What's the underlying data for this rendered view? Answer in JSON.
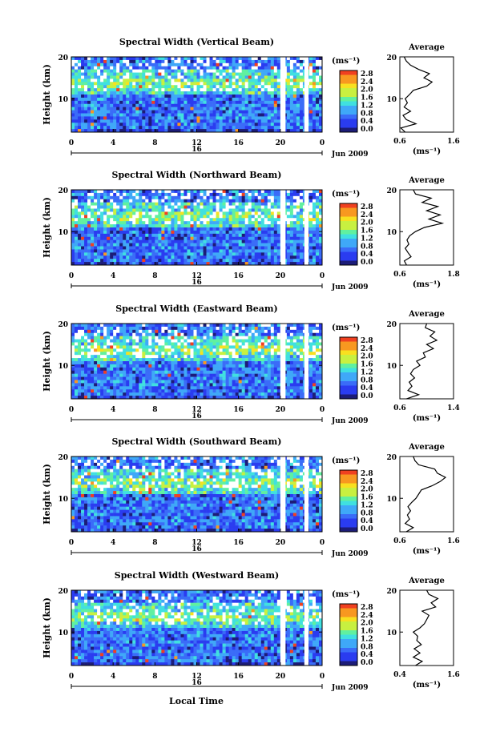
{
  "figure": {
    "xlabel": "Local Time",
    "colorbar_unit": "(ms⁻¹)",
    "colorbar_ticks": [
      "0.0",
      "0.4",
      "0.8",
      "1.2",
      "1.6",
      "2.0",
      "2.4",
      "2.8"
    ],
    "avg_title": "Average",
    "avg_xlabel": "(ms⁻¹)",
    "date_label": "Jun 2009",
    "day_label": "16",
    "ylabel": "Height (km)"
  },
  "chart_data": [
    {
      "type": "heatmap",
      "title": "Spectral Width (Vertical Beam)",
      "xlabel": "Local Time",
      "ylabel": "Height (km)",
      "x_ticks": [
        "0",
        "4",
        "8",
        "12",
        "16",
        "20",
        "0"
      ],
      "xlim": [
        0,
        24
      ],
      "y_ticks": [
        "10",
        "20"
      ],
      "ylim": [
        2,
        20
      ],
      "colorbar": {
        "label": "(ms⁻¹)",
        "range": [
          0.0,
          2.8
        ],
        "ticks": [
          "0.0",
          "0.4",
          "0.8",
          "1.2",
          "1.6",
          "2.0",
          "2.4",
          "2.8"
        ]
      },
      "data_gaps_hours": [
        [
          20.0,
          20.5
        ],
        [
          22.3,
          22.7
        ]
      ],
      "average_profile": {
        "title": "Average",
        "xlabel": "(ms⁻¹)",
        "x_ticks": [
          "0.6",
          "1.6"
        ],
        "xlim": [
          0.6,
          1.6
        ],
        "y_ticks": [
          "10",
          "20"
        ],
        "ylim": [
          2,
          20
        ],
        "height_km": [
          2,
          3,
          4,
          5,
          6,
          7,
          8,
          9,
          10,
          11,
          12,
          13,
          14,
          15,
          16,
          17,
          18,
          19,
          20
        ],
        "width_ms": [
          0.7,
          0.62,
          0.9,
          0.72,
          0.66,
          0.8,
          0.68,
          0.74,
          0.7,
          0.78,
          0.85,
          1.1,
          1.2,
          1.05,
          1.15,
          0.95,
          0.8,
          0.72,
          0.68
        ]
      }
    },
    {
      "type": "heatmap",
      "title": "Spectral Width (Northward Beam)",
      "xlabel": "Local Time",
      "ylabel": "Height (km)",
      "x_ticks": [
        "0",
        "4",
        "8",
        "12",
        "16",
        "20",
        "0"
      ],
      "xlim": [
        0,
        24
      ],
      "y_ticks": [
        "10",
        "20"
      ],
      "ylim": [
        2,
        20
      ],
      "colorbar": {
        "label": "(ms⁻¹)",
        "range": [
          0.0,
          2.8
        ],
        "ticks": [
          "0.0",
          "0.4",
          "0.8",
          "1.2",
          "1.6",
          "2.0",
          "2.4",
          "2.8"
        ]
      },
      "data_gaps_hours": [
        [
          20.0,
          20.5
        ],
        [
          22.3,
          22.7
        ]
      ],
      "average_profile": {
        "title": "Average",
        "xlabel": "(ms⁻¹)",
        "x_ticks": [
          "0.6",
          "1.8"
        ],
        "xlim": [
          0.6,
          1.8
        ],
        "y_ticks": [
          "10",
          "20"
        ],
        "ylim": [
          2,
          20
        ],
        "height_km": [
          2,
          3,
          4,
          5,
          6,
          7,
          8,
          9,
          10,
          11,
          12,
          13,
          14,
          15,
          16,
          17,
          18,
          19,
          20
        ],
        "width_ms": [
          0.75,
          0.7,
          0.85,
          0.78,
          0.72,
          0.8,
          0.76,
          0.82,
          0.95,
          1.15,
          1.55,
          1.25,
          1.5,
          1.2,
          1.45,
          1.1,
          1.3,
          0.95,
          0.9
        ]
      }
    },
    {
      "type": "heatmap",
      "title": "Spectral Width (Eastward Beam)",
      "xlabel": "Local Time",
      "ylabel": "Height (km)",
      "x_ticks": [
        "0",
        "4",
        "8",
        "12",
        "16",
        "20",
        "0"
      ],
      "xlim": [
        0,
        24
      ],
      "y_ticks": [
        "10",
        "20"
      ],
      "ylim": [
        2,
        20
      ],
      "colorbar": {
        "label": "(ms⁻¹)",
        "range": [
          0.0,
          2.8
        ],
        "ticks": [
          "0.0",
          "0.4",
          "0.8",
          "1.2",
          "1.6",
          "2.0",
          "2.4",
          "2.8"
        ]
      },
      "data_gaps_hours": [
        [
          20.0,
          20.5
        ],
        [
          22.3,
          22.7
        ]
      ],
      "average_profile": {
        "title": "Average",
        "xlabel": "(ms⁻¹)",
        "x_ticks": [
          "0.6",
          "1.4"
        ],
        "xlim": [
          0.6,
          1.4
        ],
        "y_ticks": [
          "10",
          "20"
        ],
        "ylim": [
          2,
          20
        ],
        "height_km": [
          2,
          3,
          4,
          5,
          6,
          7,
          8,
          9,
          10,
          11,
          12,
          13,
          14,
          15,
          16,
          17,
          18,
          19,
          20
        ],
        "width_ms": [
          0.7,
          0.88,
          0.72,
          0.78,
          0.74,
          0.82,
          0.76,
          0.8,
          0.9,
          0.85,
          0.98,
          0.95,
          1.1,
          1.0,
          1.15,
          1.05,
          1.12,
          0.98,
          1.0
        ]
      }
    },
    {
      "type": "heatmap",
      "title": "Spectral Width (Southward Beam)",
      "xlabel": "Local Time",
      "ylabel": "Height (km)",
      "x_ticks": [
        "0",
        "4",
        "8",
        "12",
        "16",
        "20",
        "0"
      ],
      "xlim": [
        0,
        24
      ],
      "y_ticks": [
        "10",
        "20"
      ],
      "ylim": [
        2,
        20
      ],
      "colorbar": {
        "label": "(ms⁻¹)",
        "range": [
          0.0,
          2.8
        ],
        "ticks": [
          "0.0",
          "0.4",
          "0.8",
          "1.2",
          "1.6",
          "2.0",
          "2.4",
          "2.8"
        ]
      },
      "data_gaps_hours": [
        [
          20.0,
          20.5
        ],
        [
          22.3,
          22.7
        ]
      ],
      "average_profile": {
        "title": "Average",
        "xlabel": "(ms⁻¹)",
        "x_ticks": [
          "0.6",
          "1.6"
        ],
        "xlim": [
          0.6,
          1.6
        ],
        "y_ticks": [
          "10",
          "20"
        ],
        "ylim": [
          2,
          20
        ],
        "height_km": [
          2,
          3,
          4,
          5,
          6,
          7,
          8,
          9,
          10,
          11,
          12,
          13,
          14,
          15,
          16,
          17,
          18,
          19,
          20
        ],
        "width_ms": [
          0.72,
          0.85,
          0.7,
          0.78,
          0.74,
          0.8,
          0.75,
          0.82,
          0.9,
          0.95,
          1.0,
          1.2,
          1.35,
          1.45,
          1.3,
          1.25,
          0.95,
          0.88,
          0.85
        ]
      }
    },
    {
      "type": "heatmap",
      "title": "Spectral Width (Westward Beam)",
      "xlabel": "Local Time",
      "ylabel": "Height (km)",
      "x_ticks": [
        "0",
        "4",
        "8",
        "12",
        "16",
        "20",
        "0"
      ],
      "xlim": [
        0,
        24
      ],
      "y_ticks": [
        "10",
        "20"
      ],
      "ylim": [
        2,
        20
      ],
      "colorbar": {
        "label": "(ms⁻¹)",
        "range": [
          0.0,
          2.8
        ],
        "ticks": [
          "0.0",
          "0.4",
          "0.8",
          "1.2",
          "1.6",
          "2.0",
          "2.4",
          "2.8"
        ]
      },
      "data_gaps_hours": [
        [
          20.0,
          20.5
        ],
        [
          22.3,
          22.7
        ]
      ],
      "average_profile": {
        "title": "Average",
        "xlabel": "(ms⁻¹)",
        "x_ticks": [
          "0.4",
          "1.6"
        ],
        "xlim": [
          0.4,
          1.6
        ],
        "y_ticks": [
          "10",
          "20"
        ],
        "ylim": [
          2,
          20
        ],
        "height_km": [
          2,
          3,
          4,
          5,
          6,
          7,
          8,
          9,
          10,
          11,
          12,
          13,
          14,
          15,
          16,
          17,
          18,
          19,
          20
        ],
        "width_ms": [
          0.75,
          0.9,
          0.7,
          0.85,
          0.72,
          0.88,
          0.78,
          0.8,
          0.7,
          0.85,
          0.95,
          1.0,
          1.05,
          0.9,
          1.2,
          1.1,
          1.25,
          1.05,
          1.0
        ]
      }
    }
  ],
  "colors": {
    "scale": [
      "#1c1c78",
      "#2a3cf0",
      "#3a6cf8",
      "#3fa8f8",
      "#40e0e0",
      "#60f0a0",
      "#c8f040",
      "#f8e020",
      "#f89820",
      "#f04020"
    ],
    "gap": "#ffffff",
    "axis": "#000000"
  }
}
